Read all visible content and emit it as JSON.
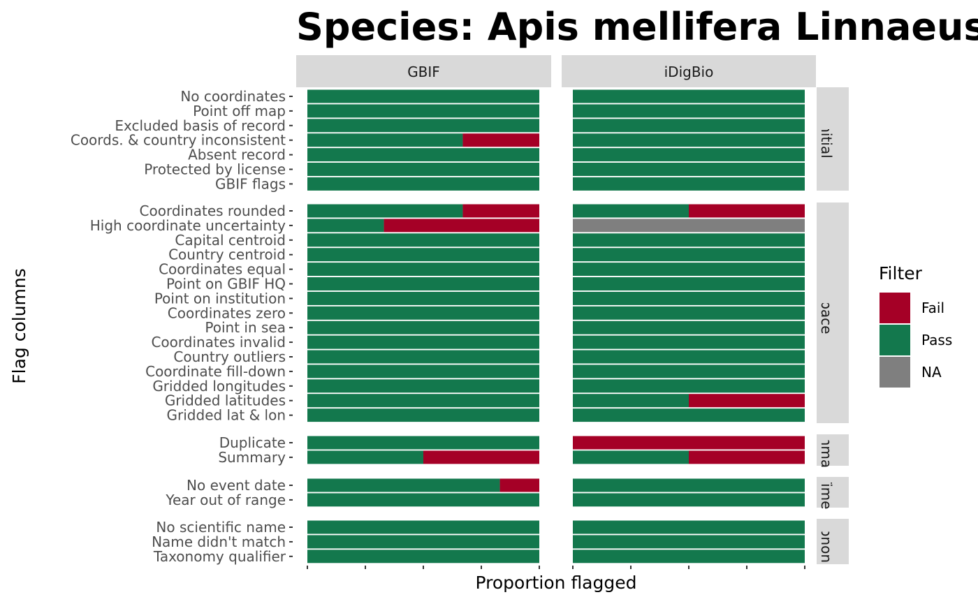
{
  "chart_data": {
    "type": "bar",
    "orientation": "horizontal",
    "stacked": true,
    "title": "Species: Apis mellifera Linnaeus",
    "xlabel": "Proportion flagged",
    "ylabel": "Flag columns",
    "xlim": [
      0,
      1
    ],
    "x_ticks": [
      0,
      0.25,
      0.5,
      0.75,
      1
    ],
    "x_tick_labels_visible": false,
    "grid": false,
    "facet_columns": [
      "GBIF",
      "iDigBio"
    ],
    "facet_rows": [
      {
        "label": "Initial",
        "display": "Initial",
        "categories": [
          "No coordinates",
          "Point off map",
          "Excluded basis of record",
          "Coords. & country inconsistent",
          "Absent record",
          "Protected by license",
          "GBIF flags"
        ]
      },
      {
        "label": "Space",
        "display": "Space",
        "categories": [
          "Coordinates rounded",
          "High coordinate uncertainty",
          "Capital centroid",
          "Country centroid",
          "Coordinates equal",
          "Point on GBIF HQ",
          "Point on institution",
          "Coordinates zero",
          "Point in sea",
          "Coordinates invalid",
          "Country outliers",
          "Coordinate fill-down",
          "Gridded longitudes",
          "Gridded latitudes",
          "Gridded lat & lon"
        ]
      },
      {
        "label": "Summary",
        "display": "mma",
        "categories": [
          "Duplicate",
          "Summary"
        ]
      },
      {
        "label": "Time",
        "display": "Time",
        "categories": [
          "No event date",
          "Year out of range"
        ]
      },
      {
        "label": "Taxonomy",
        "display": "xonon",
        "categories": [
          "No scientific name",
          "Name didn't match",
          "Taxonomy qualifier"
        ]
      }
    ],
    "series": [
      {
        "name": "GBIF",
        "fail": {
          "Coords. & country inconsistent": 0.33,
          "Coordinates rounded": 0.33,
          "High coordinate uncertainty": 0.67,
          "Summary": 0.5,
          "No event date": 0.17
        }
      },
      {
        "name": "iDigBio",
        "fail": {
          "Coordinates rounded": 0.5,
          "Gridded latitudes": 0.5,
          "Duplicate": 1.0,
          "Summary": 0.5
        },
        "na": {
          "High coordinate uncertainty": 1.0
        }
      }
    ],
    "legend": {
      "title": "Filter",
      "position": "right",
      "entries": [
        {
          "label": "Fail",
          "color": "#a50026"
        },
        {
          "label": "Pass",
          "color": "#13784d"
        },
        {
          "label": "NA",
          "color": "#7f7f7f"
        }
      ]
    },
    "colors": {
      "Fail": "#a50026",
      "Pass": "#13784d",
      "NA": "#7f7f7f",
      "strip_background": "#d9d9d9"
    }
  }
}
